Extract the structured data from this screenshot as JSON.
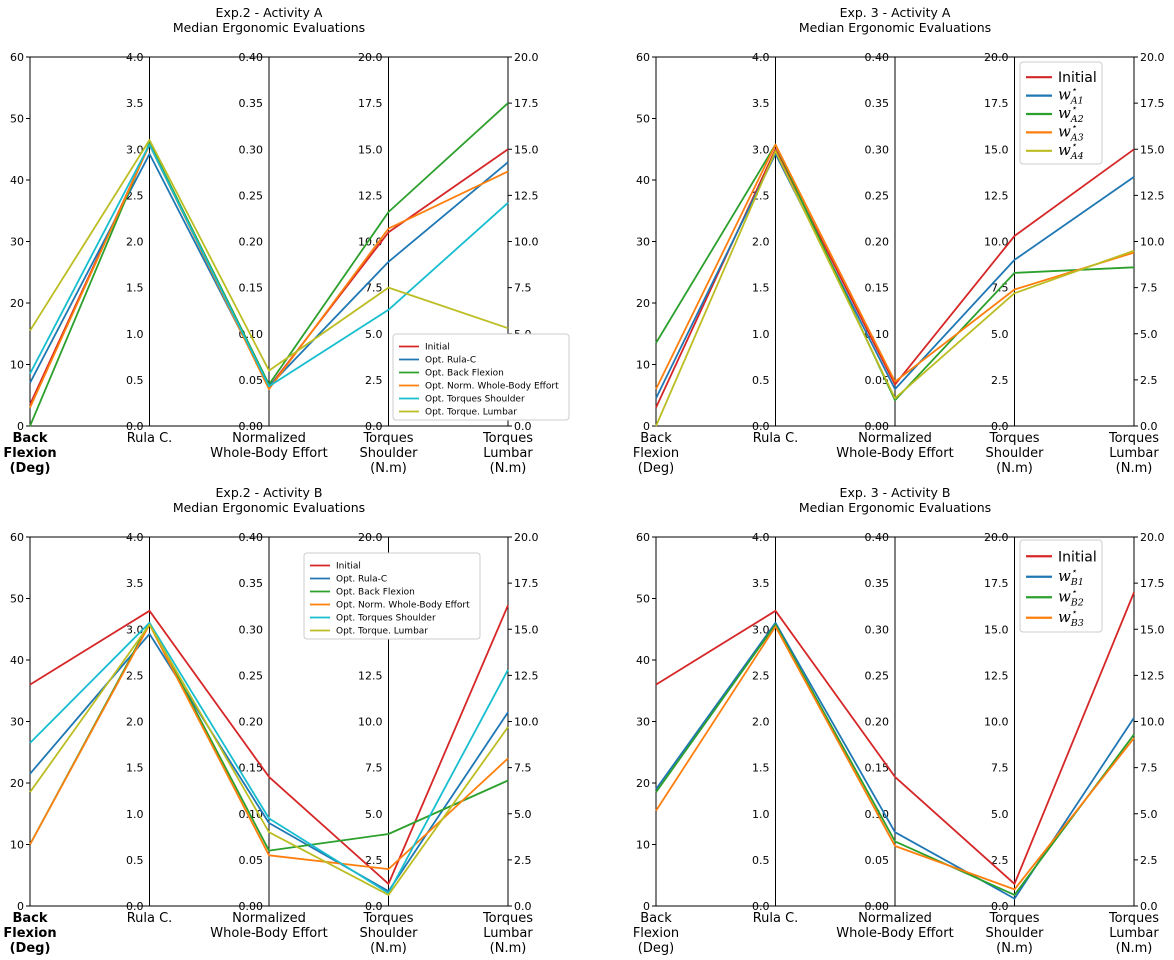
{
  "chart_data": [
    {
      "type": "line",
      "title": "Exp.2 - Activity A",
      "subtitle": "Median Ergonomic Evaluations",
      "categories": [
        "Back\nFlexion\n(Deg)",
        "Rula C.",
        "Normalized\nWhole-Body Effort",
        "Torques\nShoulder\n(N.m)",
        "Torques\nLumbar\n(N.m)"
      ],
      "category_bold": [
        true,
        false,
        false,
        false,
        false
      ],
      "axes": [
        {
          "ylim": [
            0,
            60
          ],
          "ticks": [
            "0",
            "10",
            "20",
            "30",
            "40",
            "50",
            "60"
          ]
        },
        {
          "ylim": [
            0,
            4
          ],
          "ticks": [
            "0.0",
            "0.5",
            "1.0",
            "1.5",
            "2.0",
            "2.5",
            "3.0",
            "3.5",
            "4.0"
          ]
        },
        {
          "ylim": [
            0,
            0.4
          ],
          "ticks": [
            "0.00",
            "0.05",
            "0.10",
            "0.15",
            "0.20",
            "0.25",
            "0.30",
            "0.35",
            "0.40"
          ]
        },
        {
          "ylim": [
            0,
            20
          ],
          "ticks": [
            "0.0",
            "2.5",
            "5.0",
            "7.5",
            "10.0",
            "12.5",
            "15.0",
            "17.5",
            "20.0"
          ]
        },
        {
          "ylim": [
            0,
            20
          ],
          "ticks": [
            "0.0",
            "2.5",
            "5.0",
            "7.5",
            "10.0",
            "12.5",
            "15.0",
            "17.5",
            "20.0"
          ]
        }
      ],
      "legend": {
        "position": "lower-right",
        "style": "small"
      },
      "series": [
        {
          "name": "Initial",
          "color": "#d62728",
          "values": [
            3.5,
            3.05,
            0.042,
            10.5,
            15.0
          ]
        },
        {
          "name": "Opt. Rula-C",
          "color": "#1f77b4",
          "values": [
            7.0,
            2.95,
            0.043,
            8.9,
            14.3
          ]
        },
        {
          "name": "Opt. Back Flexion",
          "color": "#2ca02c",
          "values": [
            0.0,
            3.07,
            0.045,
            11.6,
            17.5
          ]
        },
        {
          "name": "Opt. Norm. Whole-Body Effort",
          "color": "#ff7f0e",
          "values": [
            3.0,
            3.05,
            0.04,
            10.7,
            13.8
          ]
        },
        {
          "name": "Opt. Torques Shoulder",
          "color": "#17becf",
          "values": [
            8.5,
            3.05,
            0.043,
            6.3,
            12.1
          ]
        },
        {
          "name": "Opt. Torque. Lumbar",
          "color": "#bcbd22",
          "values": [
            15.5,
            3.1,
            0.06,
            7.5,
            5.3
          ]
        }
      ]
    },
    {
      "type": "line",
      "title": "Exp. 3 - Activity A",
      "subtitle": "Median Ergonomic Evaluations",
      "categories": [
        "Back\nFlexion\n(Deg)",
        "Rula C.",
        "Normalized\nWhole-Body Effort",
        "Torques\nShoulder\n(N.m)",
        "Torques\nLumbar\n(N.m)"
      ],
      "category_bold": [
        false,
        false,
        false,
        false,
        false
      ],
      "axes": [
        {
          "ylim": [
            0,
            60
          ],
          "ticks": [
            "0",
            "10",
            "20",
            "30",
            "40",
            "50",
            "60"
          ]
        },
        {
          "ylim": [
            0,
            4
          ],
          "ticks": [
            "0.0",
            "0.5",
            "1.0",
            "1.5",
            "2.0",
            "2.5",
            "3.0",
            "3.5",
            "4.0"
          ]
        },
        {
          "ylim": [
            0,
            0.4
          ],
          "ticks": [
            "0.00",
            "0.05",
            "0.10",
            "0.15",
            "0.20",
            "0.25",
            "0.30",
            "0.35",
            "0.40"
          ]
        },
        {
          "ylim": [
            0,
            20
          ],
          "ticks": [
            "0.0",
            "2.5",
            "5.0",
            "7.5",
            "10.0",
            "12.5",
            "15.0",
            "17.5",
            "20.0"
          ]
        },
        {
          "ylim": [
            0,
            20
          ],
          "ticks": [
            "0.0",
            "2.5",
            "5.0",
            "7.5",
            "10.0",
            "12.5",
            "15.0",
            "17.5",
            "20.0"
          ]
        }
      ],
      "legend": {
        "position": "upper-left of 4th axis",
        "style": "large"
      },
      "series": [
        {
          "name": "Initial",
          "color": "#d62728",
          "values": [
            3.0,
            3.0,
            0.045,
            10.3,
            15.0
          ]
        },
        {
          "name": "w",
          "sub": "A1",
          "color": "#1f77b4",
          "values": [
            4.5,
            2.95,
            0.04,
            9.0,
            13.5
          ]
        },
        {
          "name": "w",
          "sub": "A2",
          "color": "#2ca02c",
          "values": [
            13.5,
            3.05,
            0.028,
            8.3,
            8.6
          ]
        },
        {
          "name": "w",
          "sub": "A3",
          "color": "#ff7f0e",
          "values": [
            6.0,
            3.05,
            0.048,
            7.4,
            9.4
          ]
        },
        {
          "name": "w",
          "sub": "A4",
          "color": "#bcbd22",
          "values": [
            0.0,
            2.98,
            0.03,
            7.2,
            9.5
          ]
        }
      ]
    },
    {
      "type": "line",
      "title": "Exp.2 - Activity B",
      "subtitle": "Median Ergonomic Evaluations",
      "categories": [
        "Back\nFlexion\n(Deg)",
        "Rula C.",
        "Normalized\nWhole-Body Effort",
        "Torques\nShoulder\n(N.m)",
        "Torques\nLumbar\n(N.m)"
      ],
      "category_bold": [
        true,
        false,
        false,
        false,
        false
      ],
      "axes": [
        {
          "ylim": [
            0,
            60
          ],
          "ticks": [
            "0",
            "10",
            "20",
            "30",
            "40",
            "50",
            "60"
          ]
        },
        {
          "ylim": [
            0,
            4
          ],
          "ticks": [
            "0.0",
            "0.5",
            "1.0",
            "1.5",
            "2.0",
            "2.5",
            "3.0",
            "3.5",
            "4.0"
          ]
        },
        {
          "ylim": [
            0,
            0.4
          ],
          "ticks": [
            "0.00",
            "0.05",
            "0.10",
            "0.15",
            "0.20",
            "0.25",
            "0.30",
            "0.35",
            "0.40"
          ]
        },
        {
          "ylim": [
            0,
            20
          ],
          "ticks": [
            "0.0",
            "2.5",
            "5.0",
            "7.5",
            "10.0",
            "12.5",
            "15.0",
            "17.5",
            "20.0"
          ]
        },
        {
          "ylim": [
            0,
            20
          ],
          "ticks": [
            "0.0",
            "2.5",
            "5.0",
            "7.5",
            "10.0",
            "12.5",
            "15.0",
            "17.5",
            "20.0"
          ]
        }
      ],
      "legend": {
        "position": "upper-right",
        "style": "small"
      },
      "series": [
        {
          "name": "Initial",
          "color": "#d62728",
          "values": [
            36.0,
            3.2,
            0.14,
            1.2,
            16.3
          ]
        },
        {
          "name": "Opt. Rula-C",
          "color": "#1f77b4",
          "values": [
            21.5,
            2.95,
            0.09,
            0.8,
            10.5
          ]
        },
        {
          "name": "Opt. Back Flexion",
          "color": "#2ca02c",
          "values": [
            10.0,
            3.07,
            0.06,
            3.9,
            6.8
          ]
        },
        {
          "name": "Opt. Norm. Whole-Body Effort",
          "color": "#ff7f0e",
          "values": [
            10.0,
            3.05,
            0.055,
            2.0,
            8.0
          ]
        },
        {
          "name": "Opt. Torques Shoulder",
          "color": "#17becf",
          "values": [
            26.5,
            3.07,
            0.095,
            0.7,
            12.8
          ]
        },
        {
          "name": "Opt. Torque. Lumbar",
          "color": "#bcbd22",
          "values": [
            18.5,
            3.05,
            0.08,
            0.6,
            9.7
          ]
        }
      ]
    },
    {
      "type": "line",
      "title": "Exp. 3 - Activity B",
      "subtitle": "Median Ergonomic Evaluations",
      "categories": [
        "Back\nFlexion\n(Deg)",
        "Rula C.",
        "Normalized\nWhole-Body Effort",
        "Torques\nShoulder\n(N.m)",
        "Torques\nLumbar\n(N.m)"
      ],
      "category_bold": [
        false,
        false,
        false,
        false,
        false
      ],
      "axes": [
        {
          "ylim": [
            0,
            60
          ],
          "ticks": [
            "0",
            "10",
            "20",
            "30",
            "40",
            "50",
            "60"
          ]
        },
        {
          "ylim": [
            0,
            4
          ],
          "ticks": [
            "0.0",
            "0.5",
            "1.0",
            "1.5",
            "2.0",
            "2.5",
            "3.0",
            "3.5",
            "4.0"
          ]
        },
        {
          "ylim": [
            0,
            0.4
          ],
          "ticks": [
            "0.00",
            "0.05",
            "0.10",
            "0.15",
            "0.20",
            "0.25",
            "0.30",
            "0.35",
            "0.40"
          ]
        },
        {
          "ylim": [
            0,
            20
          ],
          "ticks": [
            "0.0",
            "2.5",
            "5.0",
            "7.5",
            "10.0",
            "12.5",
            "15.0",
            "17.5",
            "20.0"
          ]
        },
        {
          "ylim": [
            0,
            20
          ],
          "ticks": [
            "0.0",
            "2.5",
            "5.0",
            "7.5",
            "10.0",
            "12.5",
            "15.0",
            "17.5",
            "20.0"
          ]
        }
      ],
      "legend": {
        "position": "upper-left of 4th axis",
        "style": "large"
      },
      "series": [
        {
          "name": "Initial",
          "color": "#d62728",
          "values": [
            36.0,
            3.2,
            0.14,
            1.2,
            17.0
          ]
        },
        {
          "name": "w",
          "sub": "B1",
          "color": "#1f77b4",
          "values": [
            19.0,
            3.07,
            0.08,
            0.4,
            10.2
          ]
        },
        {
          "name": "w",
          "sub": "B2",
          "color": "#2ca02c",
          "values": [
            18.5,
            3.05,
            0.07,
            0.6,
            9.3
          ]
        },
        {
          "name": "w",
          "sub": "B3",
          "color": "#ff7f0e",
          "values": [
            15.5,
            3.03,
            0.065,
            0.9,
            9.1
          ]
        }
      ]
    }
  ]
}
